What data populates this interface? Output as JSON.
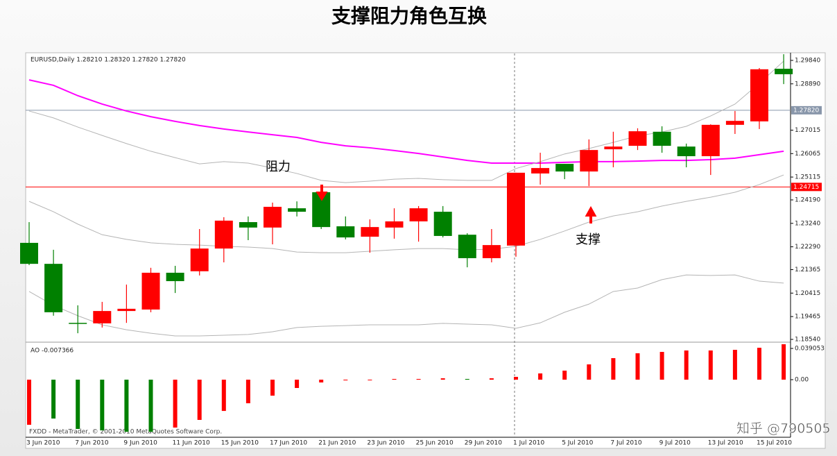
{
  "watermark": "知乎 @790505",
  "chart_data": [
    {
      "type": "candlestick",
      "title": "支撑阻力角色互换",
      "header": "EURUSD,Daily  1.28210 1.28320 1.27820 1.27820",
      "footer": "FXDD - MetaTrader, © 2001-2010 MetaQuotes Software Corp.",
      "annotations": [
        "阻力",
        "支撑"
      ],
      "categories": [
        "3 Jun 2010",
        null,
        "7 Jun 2010",
        null,
        "9 Jun 2010",
        null,
        "11 Jun 2010",
        null,
        "15 Jun 2010",
        null,
        "17 Jun 2010",
        null,
        "21 Jun 2010",
        null,
        "23 Jun 2010",
        null,
        "25 Jun 2010",
        null,
        "29 Jun 2010",
        null,
        "1 Jul 2010",
        null,
        "5 Jul 2010",
        null,
        "7 Jul 2010",
        null,
        "9 Jul 2010",
        null,
        "13 Jul 2010",
        null,
        "15 Jul 2010",
        null
      ],
      "open": [
        1.2245,
        1.216,
        1.1921,
        1.1919,
        1.1969,
        1.1975,
        1.2124,
        1.213,
        1.2222,
        1.2329,
        1.2307,
        1.2385,
        1.245,
        1.2312,
        1.227,
        1.2307,
        1.2332,
        1.2371,
        1.2278,
        1.2183,
        1.2234,
        1.2526,
        1.2565,
        1.2534,
        1.2624,
        1.2638,
        1.2695,
        1.2635,
        1.2596,
        1.2723,
        1.2737,
        1.295
      ],
      "high": [
        1.2329,
        1.2217,
        1.1992,
        1.2006,
        1.2076,
        1.2144,
        1.2152,
        1.2301,
        1.2349,
        1.2352,
        1.2408,
        1.2413,
        1.2478,
        1.2352,
        1.234,
        1.2385,
        1.2394,
        1.2394,
        1.2284,
        1.2301,
        1.2529,
        1.261,
        1.2565,
        1.2664,
        1.2695,
        1.2709,
        1.2717,
        1.2647,
        1.2725,
        1.2779,
        1.2953,
        1.3009
      ],
      "low": [
        1.2155,
        1.195,
        1.1879,
        1.1902,
        1.1921,
        1.1964,
        1.2042,
        1.2113,
        1.2166,
        1.2256,
        1.2239,
        1.2352,
        1.2301,
        1.2259,
        1.2205,
        1.2262,
        1.225,
        1.2267,
        1.2146,
        1.2166,
        1.2189,
        1.2481,
        1.2503,
        1.2475,
        1.2551,
        1.2621,
        1.261,
        1.2551,
        1.252,
        1.2686,
        1.2706,
        1.2888
      ],
      "close": [
        1.216,
        1.1964,
        1.1921,
        1.1969,
        1.1978,
        1.2124,
        1.209,
        1.2222,
        1.2335,
        1.2307,
        1.2391,
        1.2371,
        1.2309,
        1.2267,
        1.2309,
        1.2332,
        1.2385,
        1.2273,
        1.2183,
        1.2236,
        1.2529,
        1.2548,
        1.2534,
        1.2621,
        1.2635,
        1.2697,
        1.2638,
        1.2596,
        1.2723,
        1.2739,
        1.2948,
        1.2928
      ],
      "up_color": "#ff0000",
      "down_color": "#008000",
      "overlays": [
        {
          "color": "#ff00ff",
          "values": [
            1.2905,
            1.2883,
            1.2841,
            1.2807,
            1.2779,
            1.2756,
            1.2737,
            1.272,
            1.2706,
            1.2694,
            1.2683,
            1.2672,
            1.2652,
            1.2638,
            1.263,
            1.2619,
            1.2607,
            1.2593,
            1.2579,
            1.2568,
            1.2568,
            1.2568,
            1.2571,
            1.2574,
            1.2574,
            1.2576,
            1.2579,
            1.2579,
            1.2582,
            1.2588,
            1.2602,
            1.2616
          ]
        },
        {
          "color": "#b4b4b4",
          "values": [
            1.2779,
            1.2751,
            1.2714,
            1.268,
            1.2647,
            1.2616,
            1.259,
            1.2565,
            1.2574,
            1.2568,
            1.2548,
            1.2526,
            1.2498,
            1.2489,
            1.2495,
            1.2503,
            1.2506,
            1.2501,
            1.2498,
            1.2498,
            1.2546,
            1.2574,
            1.2605,
            1.2627,
            1.2652,
            1.2678,
            1.2694,
            1.2717,
            1.2759,
            1.2807,
            1.2891,
            1.2981
          ]
        },
        {
          "color": "#b4b4b4",
          "values": [
            1.2413,
            1.2371,
            1.2321,
            1.2278,
            1.2259,
            1.2245,
            1.2239,
            1.2236,
            1.2231,
            1.2228,
            1.2222,
            1.2208,
            1.2205,
            1.2205,
            1.2211,
            1.2217,
            1.2222,
            1.2222,
            1.2217,
            1.2219,
            1.2231,
            1.2259,
            1.2293,
            1.2329,
            1.2354,
            1.2371,
            1.2394,
            1.2413,
            1.243,
            1.245,
            1.2481,
            1.252
          ]
        },
        {
          "color": "#b4b4b4",
          "values": [
            1.2048,
            1.1992,
            1.195,
            1.1913,
            1.1893,
            1.1879,
            1.1868,
            1.1868,
            1.1871,
            1.1874,
            1.1885,
            1.1902,
            1.1907,
            1.191,
            1.1913,
            1.1913,
            1.1913,
            1.1919,
            1.1916,
            1.1913,
            1.1899,
            1.1921,
            1.1964,
            1.1997,
            1.2048,
            1.2062,
            1.2096,
            1.2115,
            1.2113,
            1.2115,
            1.209,
            1.2082
          ]
        }
      ],
      "levels": [
        {
          "value": 1.2782,
          "label": "1.27820",
          "color": "#8896aa"
        },
        {
          "value": 1.24715,
          "label": "1.24715",
          "color": "#ff0000"
        }
      ],
      "ylim": [
        1.18456,
        1.30121
      ],
      "yticks": [
        {
          "value": 1.2984,
          "label": "1.29840"
        },
        {
          "value": 1.2889,
          "label": "1.28890"
        },
        {
          "value": 1.27015,
          "label": "1.27015"
        },
        {
          "value": 1.26065,
          "label": "1.26065"
        },
        {
          "value": 1.25115,
          "label": "1.25115"
        },
        {
          "value": 1.2419,
          "label": "1.24190"
        },
        {
          "value": 1.2324,
          "label": "1.23240"
        },
        {
          "value": 1.2229,
          "label": "1.22290"
        },
        {
          "value": 1.21365,
          "label": "1.21365"
        },
        {
          "value": 1.20415,
          "label": "1.20415"
        },
        {
          "value": 1.19465,
          "label": "1.19465"
        },
        {
          "value": 1.1854,
          "label": "1.18540"
        }
      ]
    },
    {
      "type": "bar",
      "title": "AO -0.007366",
      "values": [
        -0.0564,
        -0.0486,
        -0.0616,
        -0.0634,
        -0.0651,
        -0.0651,
        -0.0599,
        -0.0503,
        -0.0391,
        -0.0295,
        -0.02,
        -0.0104,
        -0.0035,
        -0.0009,
        -0.0004,
        0.0009,
        0.0009,
        0.0017,
        0.0009,
        0.0017,
        0.0035,
        0.0078,
        0.0113,
        0.0191,
        0.0269,
        0.033,
        0.0347,
        0.0365,
        0.0365,
        0.0373,
        0.0399,
        0.0443
      ],
      "colors": [
        "#ff0000",
        "#008000",
        "#008000",
        "#008000",
        "#008000",
        "#008000",
        "#ff0000",
        "#ff0000",
        "#ff0000",
        "#ff0000",
        "#ff0000",
        "#ff0000",
        "#ff0000",
        "#ff0000",
        "#ff0000",
        "#ff0000",
        "#ff0000",
        "#ff0000",
        "#008000",
        "#ff0000",
        "#ff0000",
        "#ff0000",
        "#ff0000",
        "#ff0000",
        "#ff0000",
        "#ff0000",
        "#ff0000",
        "#ff0000",
        "#ff0000",
        "#ff0000",
        "#ff0000",
        "#ff0000"
      ],
      "ylim": [
        -0.072,
        0.046
      ],
      "yticks": [
        0.039053,
        {
          "value": 0,
          "label": "0.00"
        }
      ]
    }
  ]
}
